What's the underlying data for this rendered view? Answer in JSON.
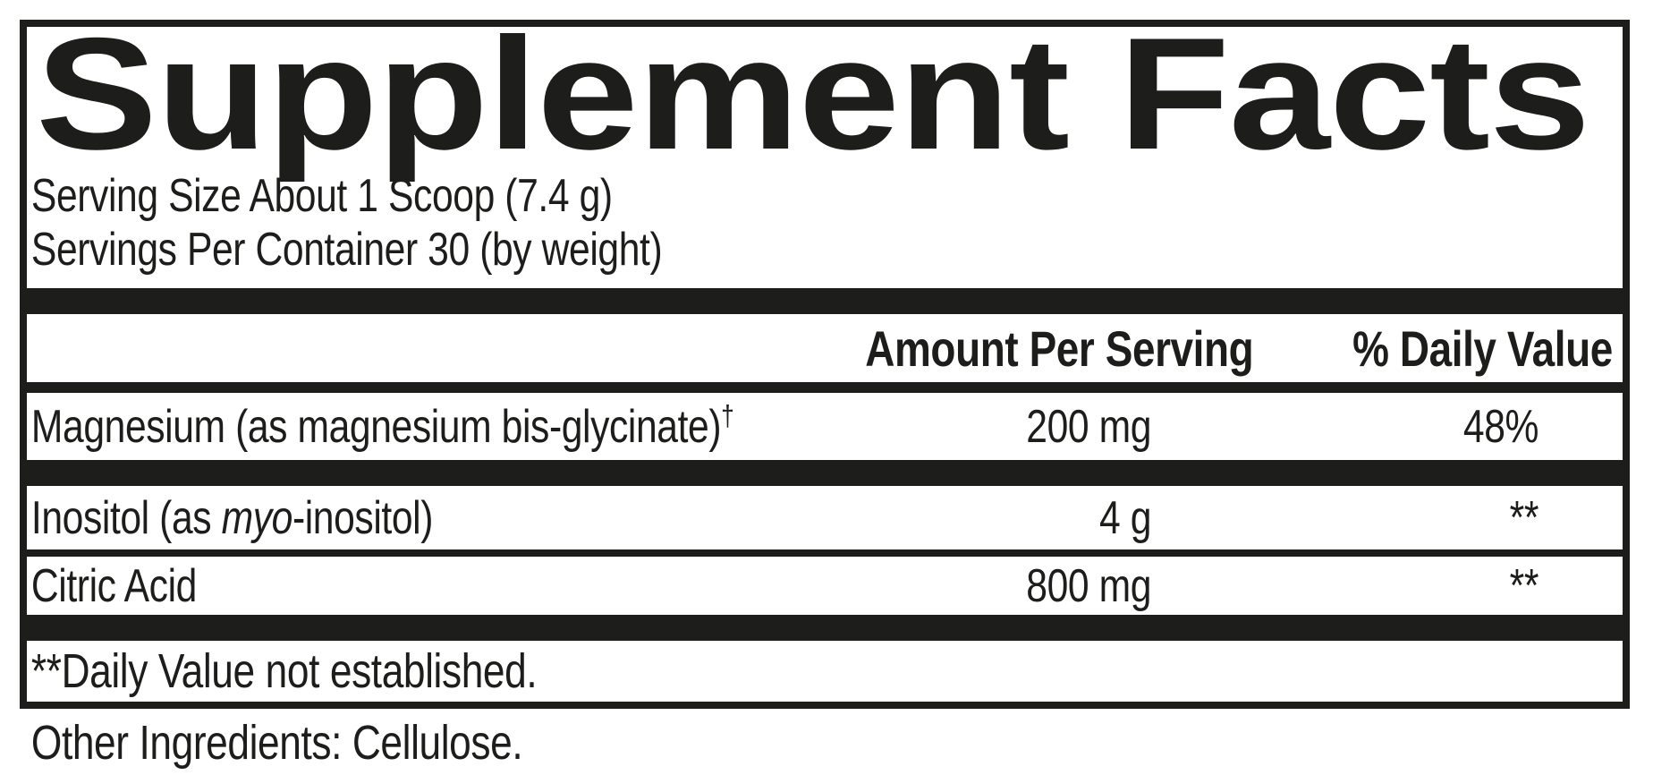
{
  "title": "Supplement Facts",
  "serving": {
    "size_line": "Serving Size About 1 Scoop (7.4 g)",
    "per_container_line": "Servings Per Container 30 (by weight)"
  },
  "table": {
    "headers": {
      "amount": "Amount Per Serving",
      "daily_value": "% Daily Value"
    },
    "rows": [
      {
        "name": "Magnesium (as magnesium bis-glycinate)",
        "name_sup": "†",
        "amount": "200 mg",
        "daily_value": "48%"
      },
      {
        "name_prefix": "Inositol (as ",
        "name_italic": "myo",
        "name_suffix": "-inositol)",
        "amount": "4 g",
        "daily_value": "**"
      },
      {
        "name": "Citric Acid",
        "amount": "800 mg",
        "daily_value": "**"
      }
    ]
  },
  "footnote": "**Daily Value not established.",
  "other_ingredients": "Other Ingredients: Cellulose.",
  "colors": {
    "ink": "#1d1d1b",
    "background": "#ffffff"
  }
}
